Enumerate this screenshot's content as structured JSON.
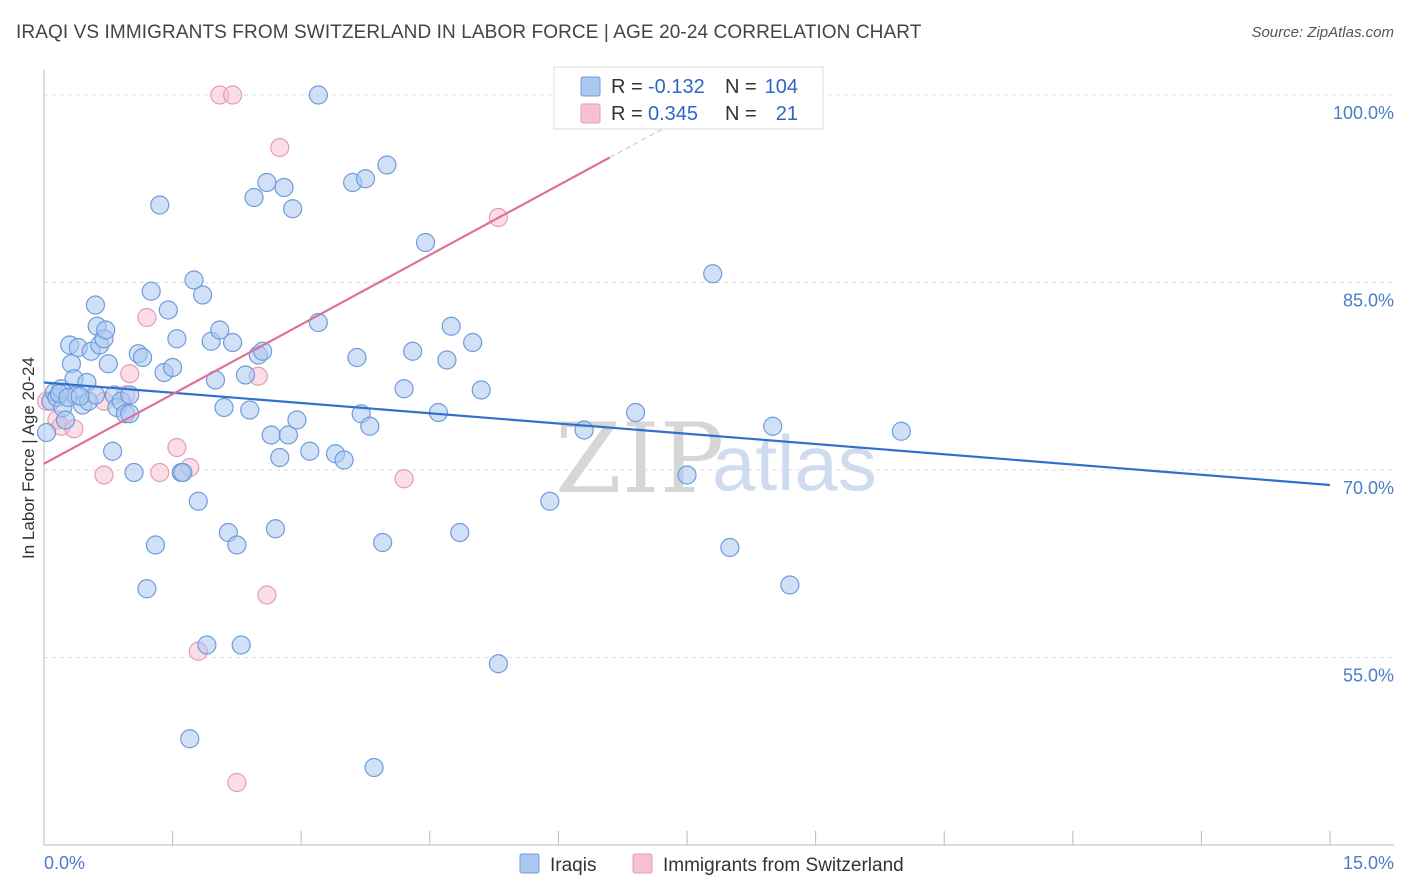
{
  "title": "IRAQI VS IMMIGRANTS FROM SWITZERLAND IN LABOR FORCE | AGE 20-24 CORRELATION CHART",
  "source": "Source: ZipAtlas.com",
  "watermark": {
    "zip": "ZIP",
    "atlas": "atlas"
  },
  "colors": {
    "iraqis_fill": "#aac8f0",
    "iraqis_stroke": "#6d9bdb",
    "iraqis_line": "#3070cc",
    "swiss_fill": "#f6c1d3",
    "swiss_stroke": "#e79ab5",
    "swiss_line": "#e0709a",
    "grid": "#dddddd",
    "axis_text": "#4a7cc9"
  },
  "legend_box": {
    "rows": [
      {
        "r_label": "R =",
        "r_value": "-0.132",
        "n_label": "N =",
        "n_value": "104"
      },
      {
        "r_label": "R =",
        "r_value": "0.345",
        "n_label": "N =",
        "n_value": "21"
      }
    ]
  },
  "chart_data": {
    "type": "scatter",
    "title": "IRAQI VS IMMIGRANTS FROM SWITZERLAND IN LABOR FORCE | AGE 20-24 CORRELATION CHART",
    "xlabel": "",
    "ylabel": "In Labor Force | Age 20-24",
    "xlim": [
      0,
      15
    ],
    "ylim": [
      40,
      102
    ],
    "x_tick_labels": [
      "0.0%",
      "15.0%"
    ],
    "y_ticks": [
      55,
      70,
      85,
      100
    ],
    "y_tick_labels": [
      "55.0%",
      "70.0%",
      "85.0%",
      "100.0%"
    ],
    "series": [
      {
        "name": "Iraqis",
        "r": -0.132,
        "n": 104,
        "trend": {
          "x": [
            0,
            15
          ],
          "y": [
            77.0,
            68.8
          ]
        },
        "points": [
          [
            0.03,
            73.0
          ],
          [
            0.08,
            75.5
          ],
          [
            0.12,
            76.2
          ],
          [
            0.15,
            75.8
          ],
          [
            0.2,
            76.5
          ],
          [
            0.22,
            75.0
          ],
          [
            0.25,
            74.0
          ],
          [
            0.3,
            80.0
          ],
          [
            0.32,
            78.5
          ],
          [
            0.35,
            77.3
          ],
          [
            0.38,
            76.0
          ],
          [
            0.4,
            79.8
          ],
          [
            0.45,
            75.2
          ],
          [
            0.5,
            77.0
          ],
          [
            0.52,
            75.5
          ],
          [
            0.55,
            79.5
          ],
          [
            0.6,
            83.2
          ],
          [
            0.62,
            81.5
          ],
          [
            0.65,
            80.0
          ],
          [
            0.7,
            80.5
          ],
          [
            0.72,
            81.2
          ],
          [
            0.75,
            78.5
          ],
          [
            0.8,
            71.5
          ],
          [
            0.82,
            76.0
          ],
          [
            0.85,
            75.0
          ],
          [
            0.9,
            75.5
          ],
          [
            0.95,
            74.5
          ],
          [
            1.0,
            74.5
          ],
          [
            1.05,
            69.8
          ],
          [
            1.1,
            79.3
          ],
          [
            1.15,
            79.0
          ],
          [
            1.2,
            60.5
          ],
          [
            1.25,
            84.3
          ],
          [
            1.3,
            64.0
          ],
          [
            1.35,
            91.2
          ],
          [
            1.4,
            77.8
          ],
          [
            1.45,
            82.8
          ],
          [
            1.5,
            78.2
          ],
          [
            1.55,
            80.5
          ],
          [
            1.6,
            69.8
          ],
          [
            1.62,
            69.8
          ],
          [
            1.7,
            48.5
          ],
          [
            1.75,
            85.2
          ],
          [
            1.8,
            67.5
          ],
          [
            1.85,
            84.0
          ],
          [
            1.9,
            56.0
          ],
          [
            1.95,
            80.3
          ],
          [
            2.0,
            77.2
          ],
          [
            2.05,
            81.2
          ],
          [
            2.1,
            75.0
          ],
          [
            2.15,
            65.0
          ],
          [
            2.2,
            80.2
          ],
          [
            2.25,
            64.0
          ],
          [
            2.3,
            56.0
          ],
          [
            2.35,
            77.6
          ],
          [
            2.4,
            74.8
          ],
          [
            2.45,
            91.8
          ],
          [
            2.5,
            79.2
          ],
          [
            2.55,
            79.5
          ],
          [
            2.6,
            93.0
          ],
          [
            2.65,
            72.8
          ],
          [
            2.7,
            65.3
          ],
          [
            2.75,
            71.0
          ],
          [
            2.8,
            92.6
          ],
          [
            2.85,
            72.8
          ],
          [
            2.9,
            90.9
          ],
          [
            2.95,
            74.0
          ],
          [
            3.1,
            71.5
          ],
          [
            3.2,
            100.0
          ],
          [
            3.4,
            71.3
          ],
          [
            3.2,
            81.8
          ],
          [
            3.5,
            70.8
          ],
          [
            3.6,
            93.0
          ],
          [
            3.65,
            79.0
          ],
          [
            3.7,
            74.5
          ],
          [
            3.75,
            93.3
          ],
          [
            3.8,
            73.5
          ],
          [
            3.85,
            46.2
          ],
          [
            3.95,
            64.2
          ],
          [
            4.0,
            94.4
          ],
          [
            4.2,
            76.5
          ],
          [
            4.3,
            79.5
          ],
          [
            4.45,
            88.2
          ],
          [
            4.6,
            74.6
          ],
          [
            4.7,
            78.8
          ],
          [
            4.75,
            81.5
          ],
          [
            4.85,
            65.0
          ],
          [
            5.0,
            80.2
          ],
          [
            5.1,
            76.4
          ],
          [
            5.3,
            54.5
          ],
          [
            5.9,
            67.5
          ],
          [
            6.3,
            73.2
          ],
          [
            6.9,
            74.6
          ],
          [
            7.5,
            69.6
          ],
          [
            7.8,
            85.7
          ],
          [
            8.0,
            63.8
          ],
          [
            8.5,
            73.5
          ],
          [
            8.7,
            60.8
          ],
          [
            10.0,
            73.1
          ],
          [
            0.6,
            76.0
          ],
          [
            1.0,
            76.0
          ],
          [
            0.18,
            76.1
          ],
          [
            0.28,
            75.8
          ],
          [
            0.42,
            75.9
          ]
        ]
      },
      {
        "name": "Immigrants from Switzerland",
        "r": 0.345,
        "n": 21,
        "trend": {
          "x": [
            0,
            8.0
          ],
          "y": [
            70.5,
            100.2
          ]
        },
        "points": [
          [
            0.03,
            75.5
          ],
          [
            0.15,
            74.0
          ],
          [
            0.2,
            73.5
          ],
          [
            0.35,
            73.3
          ],
          [
            0.7,
            75.5
          ],
          [
            0.7,
            69.6
          ],
          [
            0.95,
            76.0
          ],
          [
            1.0,
            77.7
          ],
          [
            1.2,
            82.2
          ],
          [
            1.35,
            69.8
          ],
          [
            1.55,
            71.8
          ],
          [
            1.7,
            70.2
          ],
          [
            1.8,
            55.5
          ],
          [
            2.05,
            100.0
          ],
          [
            2.2,
            100.0
          ],
          [
            2.25,
            45.0
          ],
          [
            2.5,
            77.5
          ],
          [
            2.6,
            60.0
          ],
          [
            2.75,
            95.8
          ],
          [
            4.2,
            69.3
          ],
          [
            5.3,
            90.2
          ]
        ]
      }
    ]
  }
}
